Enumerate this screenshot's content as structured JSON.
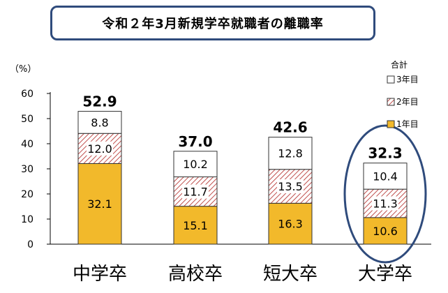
{
  "title": "令和２年3月新規学卒就職者の離職率",
  "chart_data": {
    "type": "bar",
    "stacked": true,
    "unit": "（%）",
    "ylim": [
      0,
      60
    ],
    "yticks": [
      0,
      10,
      20,
      30,
      40,
      50,
      60
    ],
    "categories": [
      "中学卒",
      "高校卒",
      "短大卒",
      "大学卒"
    ],
    "series": [
      {
        "name": "1年目",
        "values": [
          32.1,
          15.1,
          16.3,
          10.6
        ],
        "color": "#f2b92b"
      },
      {
        "name": "2年目",
        "values": [
          12.0,
          11.7,
          13.5,
          11.3
        ],
        "color": "#c0504d"
      },
      {
        "name": "3年目",
        "values": [
          8.8,
          10.2,
          12.8,
          10.4
        ],
        "color": "#ffffff"
      }
    ],
    "totals": [
      "52.9",
      "37.0",
      "42.6",
      "32.3"
    ],
    "segment_labels": [
      [
        "32.1",
        "12.0",
        "8.8"
      ],
      [
        "15.1",
        "11.7",
        "10.2"
      ],
      [
        "16.3",
        "13.5",
        "12.8"
      ],
      [
        "10.6",
        "11.3",
        "10.4"
      ]
    ],
    "legend": {
      "title": "合計",
      "placement": "right",
      "items": [
        "3年目",
        "2年目",
        "1年目"
      ]
    },
    "highlight": {
      "category": "大学卒",
      "color": "#2f4b7c"
    }
  }
}
